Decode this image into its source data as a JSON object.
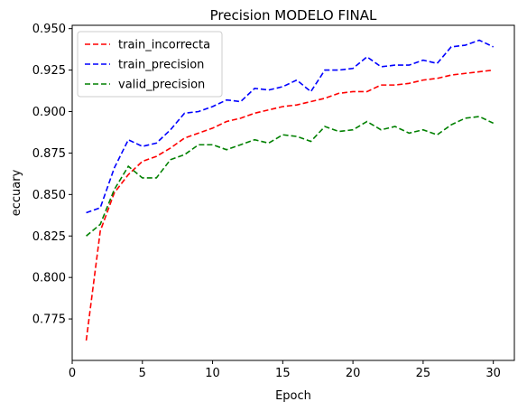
{
  "chart_data": {
    "type": "line",
    "title": "Precision  MODELO FINAL",
    "xlabel": "Epoch",
    "ylabel": "eccuary",
    "xlim": [
      0,
      31.5
    ],
    "ylim": [
      0.75,
      0.952
    ],
    "xticks": [
      0,
      5,
      10,
      15,
      20,
      25,
      30
    ],
    "yticks": [
      0.775,
      0.8,
      0.825,
      0.85,
      0.875,
      0.9,
      0.925,
      0.95
    ],
    "grid": false,
    "legend_position": "top-left",
    "x": [
      1,
      2,
      3,
      4,
      5,
      6,
      7,
      8,
      9,
      10,
      11,
      12,
      13,
      14,
      15,
      16,
      17,
      18,
      19,
      20,
      21,
      22,
      23,
      24,
      25,
      26,
      27,
      28,
      29,
      30
    ],
    "series": [
      {
        "name": "train_incorrecta",
        "color": "#ff0000",
        "style": "dashed",
        "values": [
          0.762,
          0.828,
          0.851,
          0.862,
          0.87,
          0.873,
          0.878,
          0.884,
          0.887,
          0.89,
          0.894,
          0.896,
          0.899,
          0.901,
          0.903,
          0.904,
          0.906,
          0.908,
          0.911,
          0.912,
          0.912,
          0.916,
          0.916,
          0.917,
          0.919,
          0.92,
          0.922,
          0.923,
          0.924,
          0.925
        ]
      },
      {
        "name": "train_precision",
        "color": "#0000ff",
        "style": "dashed",
        "values": [
          0.839,
          0.842,
          0.866,
          0.883,
          0.879,
          0.881,
          0.889,
          0.899,
          0.9,
          0.903,
          0.907,
          0.906,
          0.914,
          0.913,
          0.915,
          0.919,
          0.912,
          0.925,
          0.925,
          0.926,
          0.933,
          0.927,
          0.928,
          0.928,
          0.931,
          0.929,
          0.939,
          0.94,
          0.943,
          0.939
        ]
      },
      {
        "name": "valid_precision",
        "color": "#008000",
        "style": "dashed",
        "values": [
          0.825,
          0.832,
          0.853,
          0.867,
          0.86,
          0.86,
          0.871,
          0.874,
          0.88,
          0.88,
          0.877,
          0.88,
          0.883,
          0.881,
          0.886,
          0.885,
          0.882,
          0.891,
          0.888,
          0.889,
          0.894,
          0.889,
          0.891,
          0.887,
          0.889,
          0.886,
          0.892,
          0.896,
          0.897,
          0.893
        ]
      }
    ]
  }
}
